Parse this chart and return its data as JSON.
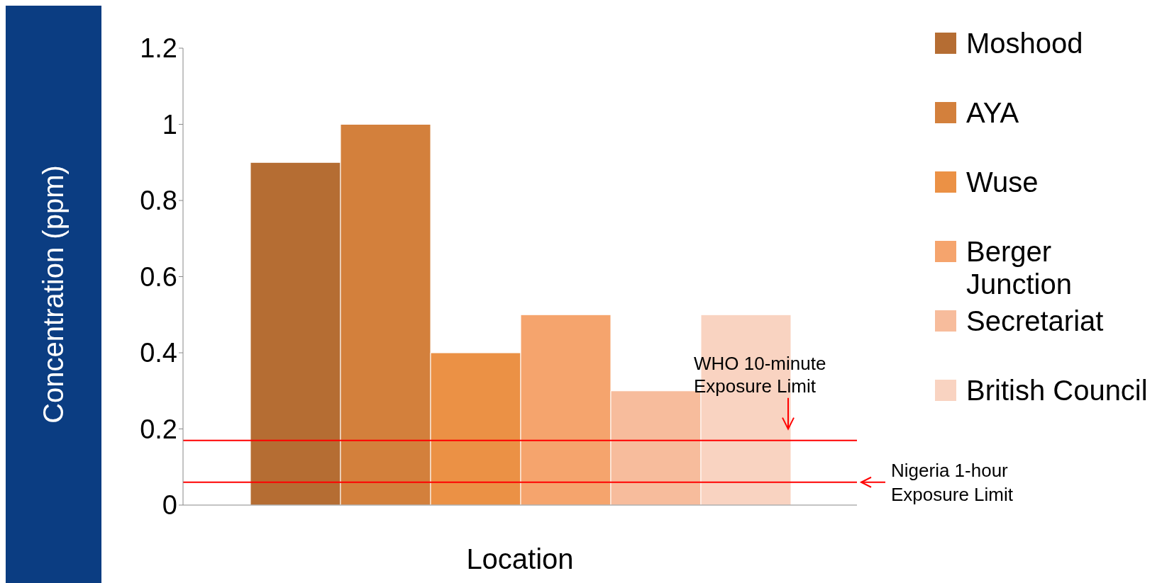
{
  "chart_data": {
    "type": "bar",
    "xlabel": "Location",
    "ylabel": "Concentration (ppm)",
    "categories": [
      null
    ],
    "series": [
      {
        "name": "Moshood",
        "color": "#b56d33",
        "values": [
          0.9
        ]
      },
      {
        "name": "AYA",
        "color": "#d3803c",
        "values": [
          1.0
        ]
      },
      {
        "name": "Wuse",
        "color": "#eb9145",
        "values": [
          0.4
        ]
      },
      {
        "name": "Berger Junction",
        "color": "#f5a46d",
        "values": [
          0.5
        ]
      },
      {
        "name": "Secretariat",
        "color": "#f7bc9c",
        "values": [
          0.3
        ]
      },
      {
        "name": "British Council",
        "color": "#f9d3c1",
        "values": [
          0.5
        ]
      }
    ],
    "ylim": [
      0,
      1.2
    ],
    "yticks": [
      0,
      0.2,
      0.4,
      0.6,
      0.8,
      1,
      1.2
    ],
    "grid": false,
    "legend": "right",
    "ref_lines": [
      {
        "axis": "y",
        "value": 0.17,
        "label": "WHO 10-minute Exposure Limit",
        "color": "#ff0000"
      },
      {
        "axis": "y",
        "value": 0.06,
        "label": "Nigeria 1-hour Exposure Limit",
        "color": "#ff0000"
      }
    ]
  }
}
